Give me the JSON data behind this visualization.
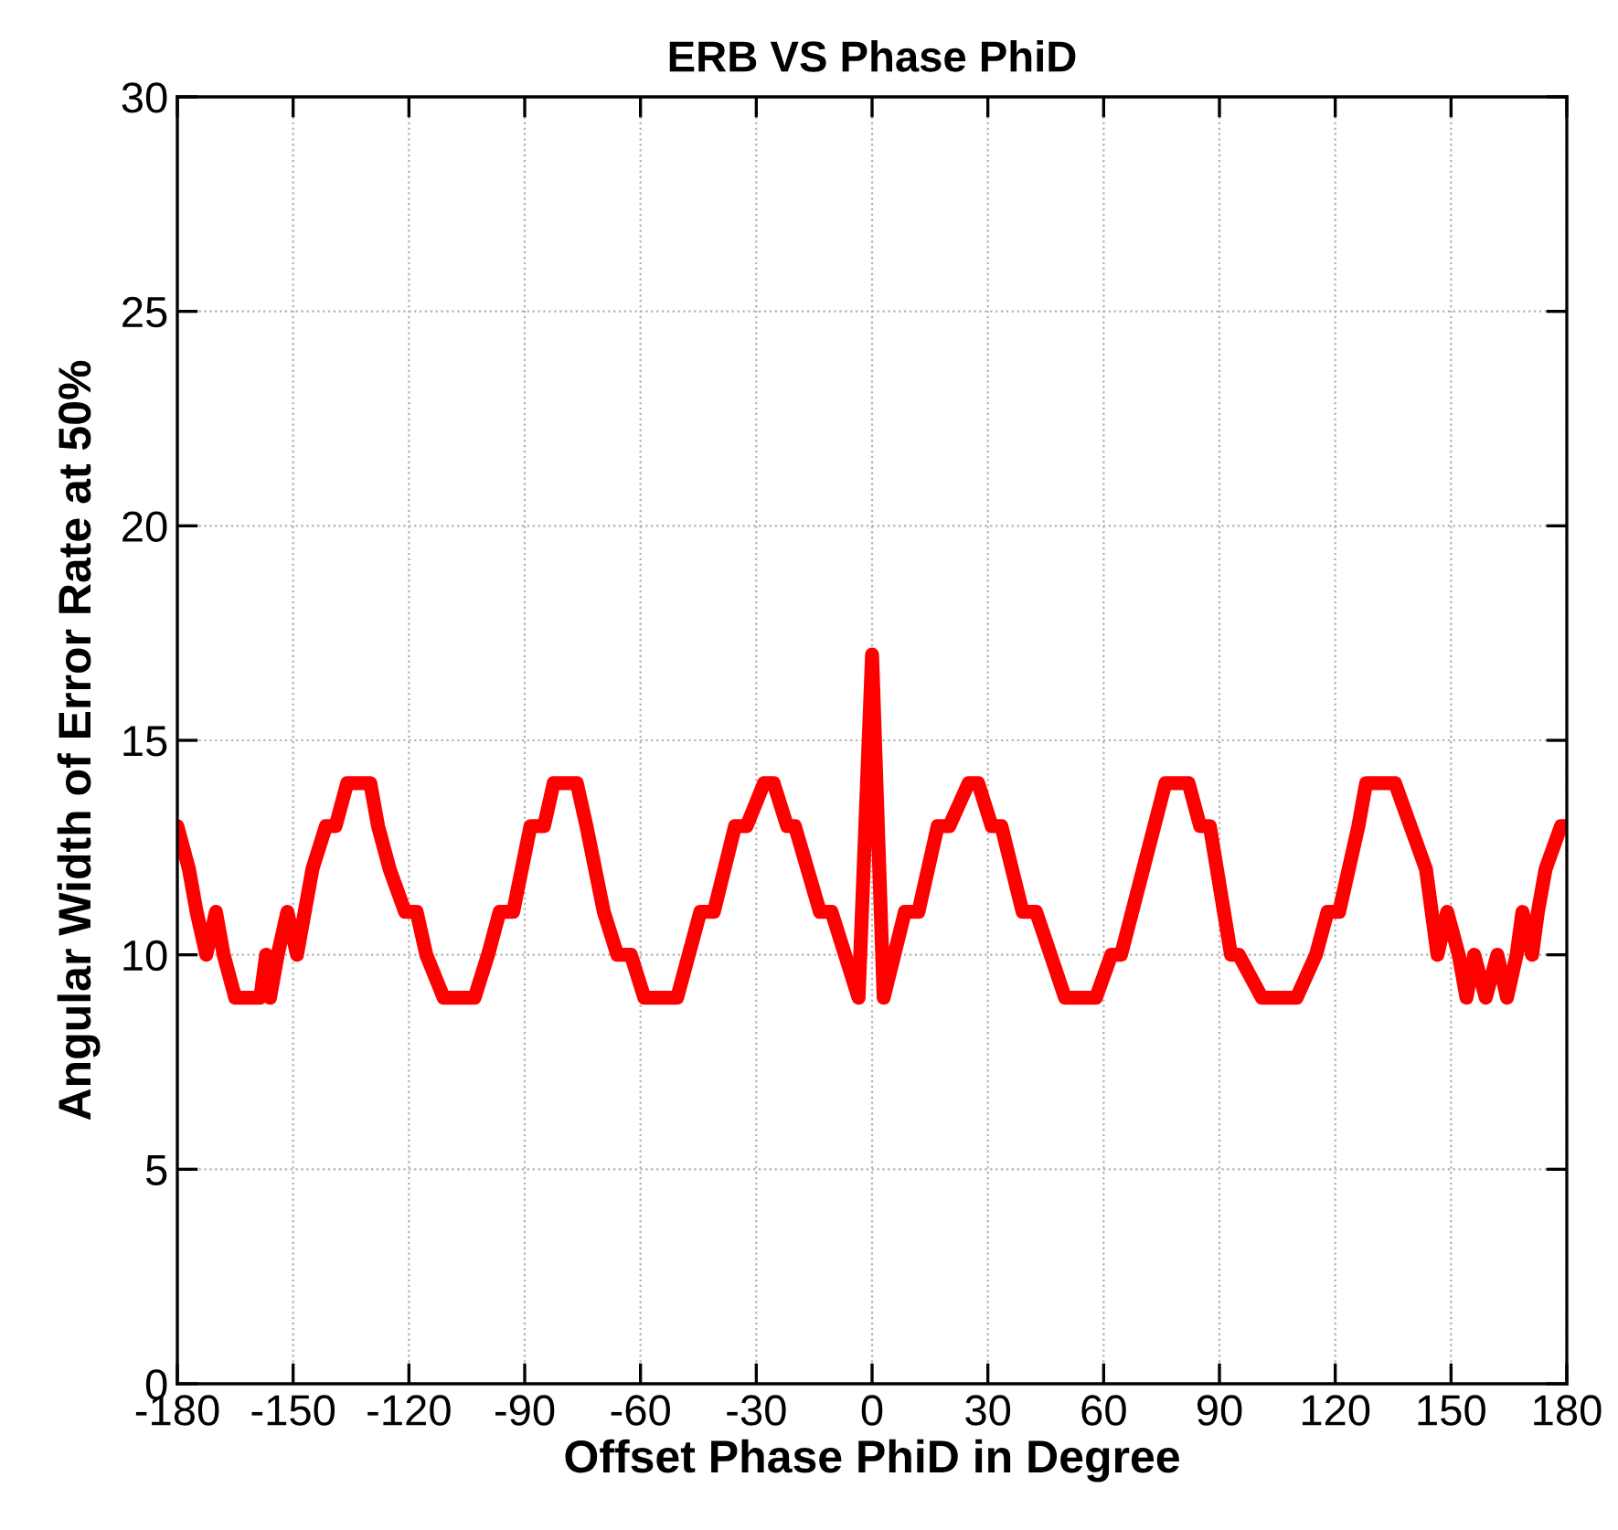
{
  "chart_data": {
    "type": "line",
    "title": "ERB VS Phase PhiD",
    "xlabel": "Offset Phase PhiD in Degree",
    "ylabel": "Angular Width of Error Rate at 50%",
    "x": [
      -180,
      -177,
      -175,
      -172.5,
      -170,
      -168,
      -165,
      -158.5,
      -157,
      -156,
      -154,
      -151.5,
      -149,
      -147,
      -145,
      -141.5,
      -139,
      -136,
      -130,
      -128,
      -125,
      -121,
      -118,
      -115.5,
      -111,
      -103,
      -99.5,
      -96.5,
      -93,
      -88.5,
      -85,
      -82.5,
      -76.5,
      -74,
      -69.5,
      -66,
      -62.5,
      -59,
      -57,
      -50.5,
      -44.5,
      -41,
      -35.5,
      -32.5,
      -28,
      -25.5,
      -22,
      -20,
      -13.5,
      -10.5,
      -3.5,
      0,
      3,
      8.5,
      12,
      17,
      20,
      25,
      27.5,
      31,
      33.5,
      39,
      42.5,
      50,
      58,
      62,
      64.5,
      76,
      82,
      85,
      87.5,
      93,
      95,
      101,
      110,
      115,
      118,
      121,
      126,
      128,
      135.5,
      139.5,
      143.5,
      145,
      146.5,
      149,
      152,
      154,
      156,
      159,
      162,
      164.5,
      167,
      168.5,
      171,
      172.5,
      174.5,
      178.5,
      180
    ],
    "series": [
      {
        "color": "#ff0000",
        "values": [
          13,
          12,
          11,
          10,
          11,
          10,
          9,
          9,
          10,
          9,
          10,
          11,
          10,
          11,
          12,
          13,
          13,
          14,
          14,
          13,
          12,
          11,
          11,
          10,
          9,
          9,
          10,
          11,
          11,
          13,
          13,
          14,
          14,
          13,
          11,
          10,
          10,
          9,
          9,
          9,
          11,
          11,
          13,
          13,
          14,
          14,
          13,
          13,
          11,
          11,
          9,
          17,
          9,
          11,
          11,
          13,
          13,
          14,
          14,
          13,
          13,
          11,
          11,
          9,
          9,
          10,
          10,
          14,
          14,
          13,
          13,
          10,
          10,
          9,
          9,
          10,
          11,
          11,
          13,
          14,
          14,
          13,
          12,
          11,
          10,
          11,
          10,
          9,
          10,
          9,
          10,
          9,
          10,
          11,
          10,
          11,
          12,
          13,
          13
        ]
      }
    ],
    "xlim": [
      -180,
      180
    ],
    "xticks": [
      -180,
      -150,
      -120,
      -90,
      -60,
      -30,
      0,
      30,
      60,
      90,
      120,
      150,
      180
    ],
    "ylim": [
      0,
      30
    ],
    "yticks": [
      0,
      5,
      10,
      15,
      20,
      25,
      30
    ],
    "grid": true,
    "line_style": "solid",
    "marker": "none"
  }
}
